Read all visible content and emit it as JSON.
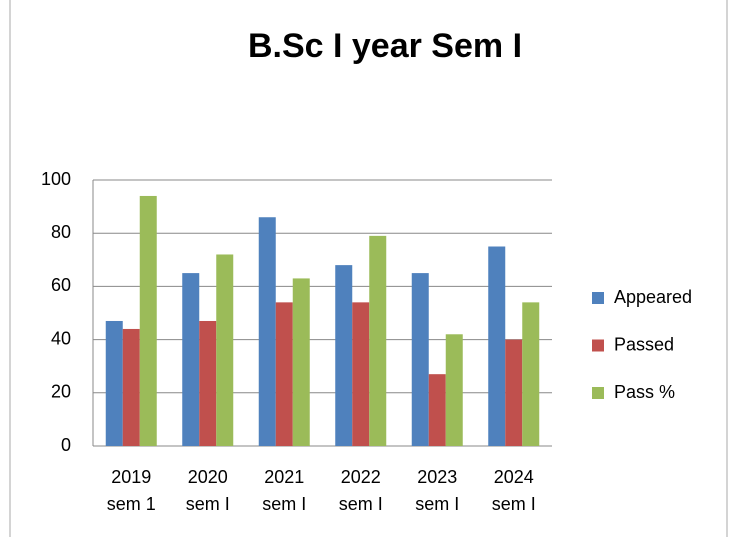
{
  "chart_data": {
    "type": "bar",
    "title": "B.Sc I year Sem I",
    "categories": [
      [
        "2019",
        "sem 1"
      ],
      [
        "2020",
        "sem I"
      ],
      [
        "2021",
        "sem I"
      ],
      [
        "2022",
        "sem I"
      ],
      [
        "2023",
        "sem I"
      ],
      [
        "2024",
        "sem I"
      ]
    ],
    "series": [
      {
        "name": "Appeared",
        "color": "#4f81bd",
        "values": [
          47,
          65,
          86,
          68,
          65,
          75
        ]
      },
      {
        "name": "Passed",
        "color": "#c0504d",
        "values": [
          44,
          47,
          54,
          54,
          27,
          40
        ]
      },
      {
        "name": "Pass %",
        "color": "#9bbb59",
        "values": [
          94,
          72,
          63,
          79,
          42,
          54
        ]
      }
    ],
    "ylim": [
      0,
      100
    ],
    "yticks": [
      0,
      20,
      40,
      60,
      80,
      100
    ],
    "grid": true,
    "legend": "right"
  }
}
